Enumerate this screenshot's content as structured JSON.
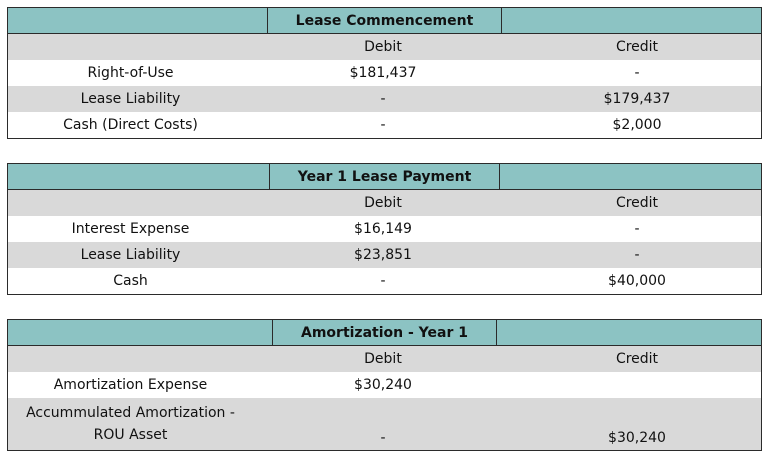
{
  "colors": {
    "header_bg": "#8cc3c3",
    "shade_bg": "#d9d9d9",
    "border": "#2b2b2b"
  },
  "tables": [
    {
      "title": "Lease Commencement",
      "col_debit": "Debit",
      "col_credit": "Credit",
      "rows": [
        {
          "account": "Right-of-Use",
          "debit": "$181,437",
          "credit": "-"
        },
        {
          "account": "Lease Liability",
          "debit": "-",
          "credit": "$179,437"
        },
        {
          "account": "Cash (Direct Costs)",
          "debit": "-",
          "credit": "$2,000"
        }
      ]
    },
    {
      "title": "Year 1 Lease Payment",
      "col_debit": "Debit",
      "col_credit": "Credit",
      "rows": [
        {
          "account": "Interest Expense",
          "debit": "$16,149",
          "credit": "-"
        },
        {
          "account": "Lease Liability",
          "debit": "$23,851",
          "credit": "-"
        },
        {
          "account": "Cash",
          "debit": "-",
          "credit": "$40,000"
        }
      ]
    },
    {
      "title": "Amortization - Year 1",
      "col_debit": "Debit",
      "col_credit": "Credit",
      "rows": [
        {
          "account": "Amortization Expense",
          "debit": "$30,240",
          "credit": ""
        },
        {
          "account_line1": "Accummulated Amortization -",
          "account_line2": "ROU Asset",
          "debit": "-",
          "credit": "$30,240"
        }
      ]
    }
  ]
}
